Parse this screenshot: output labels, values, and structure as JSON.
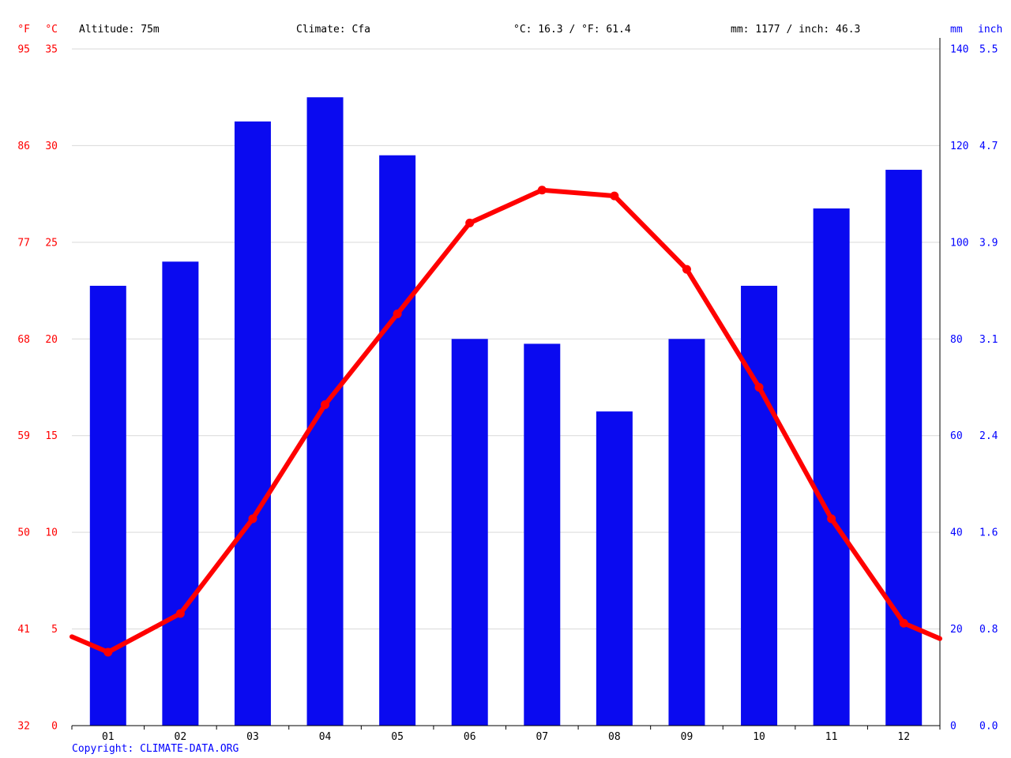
{
  "header": {
    "f_unit": "°F",
    "c_unit": "°C",
    "altitude": "Altitude: 75m",
    "climate": "Climate: Cfa",
    "temp_summary": "°C: 16.3 / °F: 61.4",
    "precip_summary": "mm: 1177 / inch: 46.3",
    "mm_unit": "mm",
    "inch_unit": "inch"
  },
  "footer": {
    "copyright": "Copyright: CLIMATE-DATA.ORG"
  },
  "colors": {
    "bar": "#0a0af0",
    "line": "#ff0000",
    "red_text": "#ff0000",
    "blue_text": "#0000ff",
    "grid": "#d9d9d9",
    "axis": "#000000"
  },
  "chart_data": {
    "type": "bar+line climate chart",
    "categories": [
      "01",
      "02",
      "03",
      "04",
      "05",
      "06",
      "07",
      "08",
      "09",
      "10",
      "11",
      "12"
    ],
    "series": [
      {
        "name": "Precipitation",
        "type": "bar",
        "unit": "mm",
        "values": [
          91,
          96,
          125,
          130,
          118,
          80,
          79,
          65,
          80,
          91,
          107,
          115
        ]
      },
      {
        "name": "Temperature",
        "type": "line",
        "unit": "°C",
        "values": [
          3.8,
          5.8,
          10.7,
          16.6,
          21.3,
          26.0,
          27.7,
          27.4,
          23.6,
          17.5,
          10.7,
          5.3
        ],
        "edge_start": 4.6,
        "edge_end": 4.5
      }
    ],
    "axes": {
      "temp_c_ticks": [
        0,
        5,
        10,
        15,
        20,
        25,
        30,
        35
      ],
      "temp_f_ticks": [
        32,
        41,
        50,
        59,
        68,
        77,
        86,
        95
      ],
      "precip_mm_ticks": [
        0,
        20,
        40,
        60,
        80,
        100,
        120,
        140
      ],
      "precip_inch_ticks": [
        "0.0",
        "0.8",
        "1.6",
        "2.4",
        "3.1",
        "3.9",
        "4.7",
        "5.5"
      ],
      "c_range": [
        0,
        35
      ],
      "mm_range": [
        0,
        140
      ]
    },
    "title": "",
    "legend": "none",
    "grid": "horizontal"
  }
}
